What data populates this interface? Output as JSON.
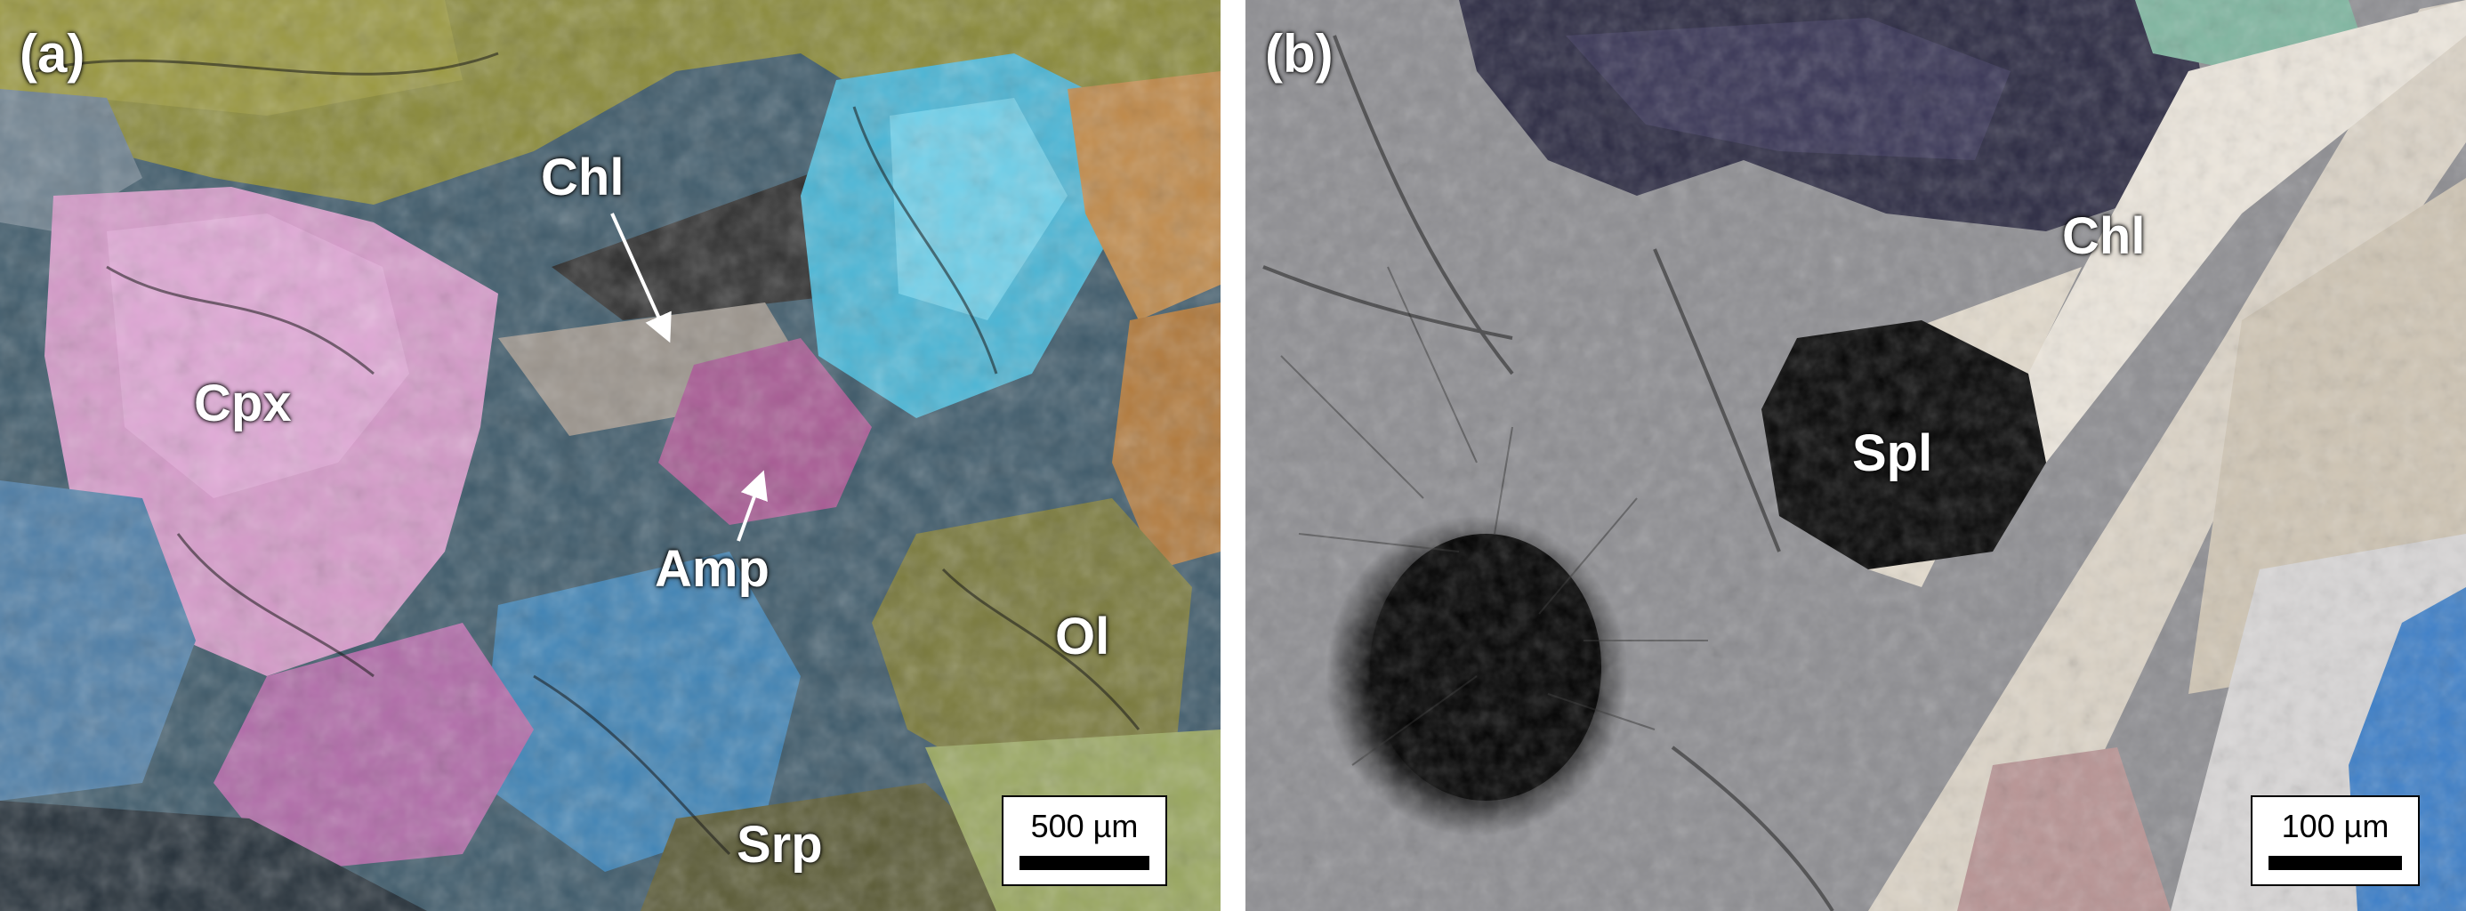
{
  "figure": {
    "panels": [
      {
        "letter": "(a)",
        "labels": {
          "chl": "Chl",
          "cpx": "Cpx",
          "amp": "Amp",
          "ol": "Ol",
          "srp": "Srp"
        },
        "scale_bar": "500 µm"
      },
      {
        "letter": "(b)",
        "labels": {
          "chl": "Chl",
          "spl": "Spl"
        },
        "scale_bar": "100 µm"
      }
    ]
  }
}
